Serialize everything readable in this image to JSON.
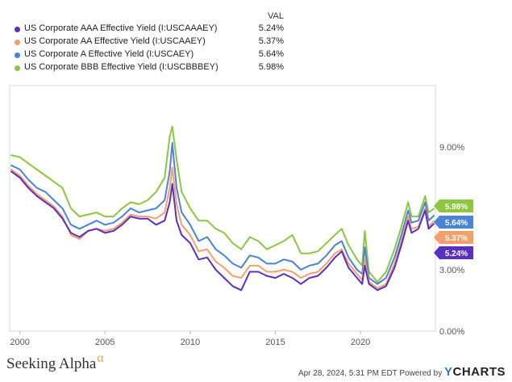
{
  "legend": {
    "header": "VAL",
    "items": [
      {
        "name": "US Corporate AAA Effective Yield (I:USCAAAEY)",
        "value": "5.24%",
        "color": "#5a2fc2"
      },
      {
        "name": "US Corporate AA Effective Yield (I:USCAAEY)",
        "value": "5.37%",
        "color": "#f5a06a"
      },
      {
        "name": "US Corporate A Effective Yield (I:USCAEY)",
        "value": "5.64%",
        "color": "#4b83d9"
      },
      {
        "name": "US Corporate BBB Effective Yield (I:USCBBBEY)",
        "value": "5.98%",
        "color": "#8dc63f"
      }
    ]
  },
  "chart_data": {
    "type": "line",
    "xlabel": "",
    "ylabel": "",
    "x_ticks": [
      "2000",
      "2005",
      "2010",
      "2015",
      "2020"
    ],
    "y_ticks": [
      "0.00%",
      "3.00%",
      "9.00%"
    ],
    "xlim": [
      1999.4,
      2024.4
    ],
    "ylim": [
      0,
      12
    ],
    "grid": false,
    "legend_position": "top-left",
    "end_labels": [
      "5.98%",
      "5.64%",
      "5.37%",
      "5.24%"
    ],
    "series": [
      {
        "name": "US Corporate AAA Effective Yield (I:USCAAAEY)",
        "color": "#5a2fc2",
        "end_label": "5.24%",
        "x": [
          1999.5,
          2000.0,
          2000.5,
          2001.0,
          2001.5,
          2002.0,
          2002.5,
          2003.0,
          2003.5,
          2004.0,
          2004.5,
          2005.0,
          2005.5,
          2006.0,
          2006.5,
          2007.0,
          2007.5,
          2008.0,
          2008.5,
          2008.8,
          2008.95,
          2009.2,
          2009.5,
          2010.0,
          2010.5,
          2011.0,
          2011.5,
          2012.0,
          2012.5,
          2013.0,
          2013.5,
          2014.0,
          2014.5,
          2015.0,
          2015.5,
          2016.0,
          2016.5,
          2017.0,
          2017.5,
          2018.0,
          2018.5,
          2018.9,
          2019.3,
          2019.8,
          2020.1,
          2020.25,
          2020.5,
          2021.0,
          2021.5,
          2022.0,
          2022.4,
          2022.8,
          2023.0,
          2023.4,
          2023.8,
          2024.0,
          2024.3
        ],
        "values": [
          7.8,
          7.5,
          7.0,
          6.6,
          6.3,
          6.0,
          5.5,
          4.8,
          4.6,
          4.9,
          5.0,
          4.8,
          4.9,
          5.2,
          5.6,
          5.5,
          5.5,
          5.2,
          5.4,
          6.3,
          7.2,
          5.4,
          4.7,
          4.3,
          3.5,
          3.6,
          3.0,
          2.6,
          2.2,
          2.0,
          2.9,
          2.9,
          2.7,
          2.6,
          2.8,
          2.6,
          2.3,
          2.6,
          2.7,
          3.1,
          3.6,
          3.9,
          3.1,
          2.6,
          2.3,
          3.2,
          2.3,
          2.0,
          2.2,
          3.1,
          4.2,
          5.4,
          4.8,
          5.0,
          5.9,
          5.0,
          5.24
        ]
      },
      {
        "name": "US Corporate AA Effective Yield (I:USCAAEY)",
        "color": "#f5a06a",
        "end_label": "5.37%",
        "x": [
          1999.5,
          2000.0,
          2000.5,
          2001.0,
          2001.5,
          2002.0,
          2002.5,
          2003.0,
          2003.5,
          2004.0,
          2004.5,
          2005.0,
          2005.5,
          2006.0,
          2006.5,
          2007.0,
          2007.5,
          2008.0,
          2008.5,
          2008.8,
          2008.95,
          2009.2,
          2009.5,
          2010.0,
          2010.5,
          2011.0,
          2011.5,
          2012.0,
          2012.5,
          2013.0,
          2013.5,
          2014.0,
          2014.5,
          2015.0,
          2015.5,
          2016.0,
          2016.5,
          2017.0,
          2017.5,
          2018.0,
          2018.5,
          2018.9,
          2019.3,
          2019.8,
          2020.1,
          2020.25,
          2020.5,
          2021.0,
          2021.5,
          2022.0,
          2022.4,
          2022.8,
          2023.0,
          2023.4,
          2023.8,
          2024.0,
          2024.3
        ],
        "values": [
          7.9,
          7.6,
          7.1,
          6.7,
          6.4,
          6.1,
          5.6,
          4.7,
          4.5,
          4.9,
          5.0,
          4.9,
          5.0,
          5.3,
          5.7,
          5.6,
          5.6,
          5.5,
          5.8,
          7.0,
          8.0,
          6.2,
          5.2,
          4.7,
          3.9,
          4.0,
          3.4,
          3.1,
          2.7,
          2.6,
          3.2,
          3.2,
          2.9,
          2.9,
          3.0,
          2.9,
          2.6,
          2.8,
          2.9,
          3.3,
          3.8,
          4.0,
          3.3,
          2.8,
          2.5,
          3.5,
          2.4,
          2.1,
          2.3,
          3.3,
          4.4,
          5.6,
          5.0,
          5.1,
          6.0,
          5.1,
          5.37
        ]
      },
      {
        "name": "US Corporate A Effective Yield (I:USCAEY)",
        "color": "#4b83d9",
        "end_label": "5.64%",
        "x": [
          1999.5,
          2000.0,
          2000.5,
          2001.0,
          2001.5,
          2002.0,
          2002.5,
          2003.0,
          2003.5,
          2004.0,
          2004.5,
          2005.0,
          2005.5,
          2006.0,
          2006.5,
          2007.0,
          2007.5,
          2008.0,
          2008.5,
          2008.8,
          2008.95,
          2009.2,
          2009.5,
          2010.0,
          2010.5,
          2011.0,
          2011.5,
          2012.0,
          2012.5,
          2013.0,
          2013.5,
          2014.0,
          2014.5,
          2015.0,
          2015.5,
          2016.0,
          2016.5,
          2017.0,
          2017.5,
          2018.0,
          2018.5,
          2018.9,
          2019.3,
          2019.8,
          2020.1,
          2020.25,
          2020.5,
          2021.0,
          2021.5,
          2022.0,
          2022.4,
          2022.8,
          2023.0,
          2023.4,
          2023.8,
          2024.0,
          2024.3
        ],
        "values": [
          8.1,
          7.9,
          7.4,
          7.0,
          6.8,
          6.4,
          6.0,
          5.2,
          5.0,
          5.2,
          5.4,
          5.2,
          5.3,
          5.6,
          6.0,
          5.8,
          5.9,
          6.0,
          6.4,
          7.8,
          9.2,
          7.0,
          5.8,
          5.2,
          4.4,
          4.6,
          4.0,
          3.7,
          3.3,
          3.1,
          3.7,
          3.6,
          3.3,
          3.3,
          3.5,
          3.4,
          3.0,
          3.2,
          3.3,
          3.7,
          4.2,
          4.4,
          3.6,
          3.0,
          2.8,
          4.1,
          2.6,
          2.3,
          2.6,
          3.6,
          4.7,
          5.9,
          5.3,
          5.4,
          6.3,
          5.4,
          5.64
        ]
      },
      {
        "name": "US Corporate BBB Effective Yield (I:USCBBBEY)",
        "color": "#8dc63f",
        "end_label": "5.98%",
        "x": [
          1999.5,
          2000.0,
          2000.5,
          2001.0,
          2001.5,
          2002.0,
          2002.5,
          2003.0,
          2003.5,
          2004.0,
          2004.5,
          2005.0,
          2005.5,
          2006.0,
          2006.5,
          2007.0,
          2007.5,
          2008.0,
          2008.5,
          2008.8,
          2008.95,
          2009.2,
          2009.5,
          2010.0,
          2010.5,
          2011.0,
          2011.5,
          2012.0,
          2012.5,
          2013.0,
          2013.5,
          2014.0,
          2014.5,
          2015.0,
          2015.5,
          2016.0,
          2016.5,
          2017.0,
          2017.5,
          2018.0,
          2018.5,
          2018.9,
          2019.3,
          2019.8,
          2020.1,
          2020.25,
          2020.5,
          2021.0,
          2021.5,
          2022.0,
          2022.4,
          2022.8,
          2023.0,
          2023.4,
          2023.8,
          2024.0,
          2024.3
        ],
        "values": [
          8.6,
          8.5,
          8.2,
          7.9,
          7.6,
          7.3,
          7.0,
          6.0,
          5.6,
          5.7,
          5.8,
          5.6,
          5.6,
          6.0,
          6.3,
          6.2,
          6.4,
          6.8,
          7.5,
          9.5,
          10.0,
          8.4,
          6.8,
          6.0,
          5.4,
          5.4,
          5.0,
          4.8,
          4.3,
          4.0,
          4.6,
          4.4,
          4.0,
          4.2,
          4.4,
          4.7,
          3.8,
          3.8,
          3.9,
          4.3,
          4.7,
          5.0,
          4.2,
          3.5,
          3.2,
          4.9,
          2.9,
          2.4,
          2.9,
          4.0,
          5.1,
          6.3,
          5.6,
          5.6,
          6.6,
          5.8,
          5.98
        ]
      }
    ]
  },
  "footer": {
    "brand": "Seeking Alpha",
    "brand_symbol": "α",
    "timestamp_text": "Apr 28, 2024, 5:31 PM EDT  Powered by",
    "ycharts_y": "Y",
    "ycharts_rest": "CHARTS"
  }
}
